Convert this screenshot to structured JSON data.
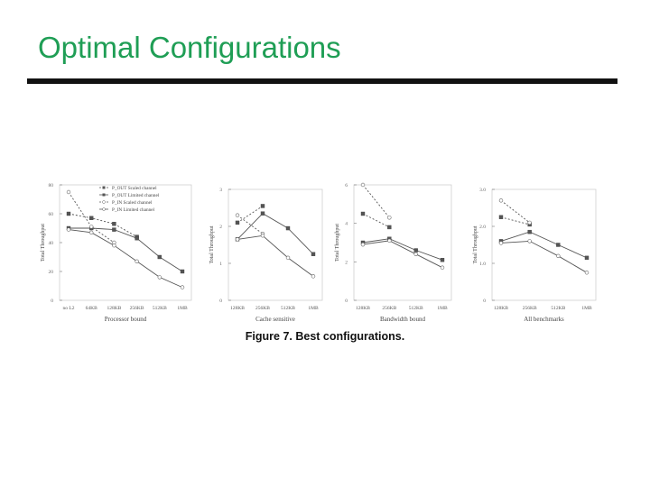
{
  "slide": {
    "title": "Optimal Configurations",
    "caption": "Figure 7. Best configurations."
  },
  "chart_data": [
    {
      "type": "line",
      "xlabel": "Processor bound",
      "ylabel": "Total Throughput",
      "categories": [
        "no L2",
        "64KB",
        "128KB",
        "256KB",
        "512KB",
        "1MB"
      ],
      "ylim": [
        0,
        80
      ],
      "yticks": [
        0,
        20,
        40,
        60,
        80
      ],
      "legend": [
        "P_OUT Scaled channel",
        "P_OUT Limited channel",
        "P_IN Scaled channel",
        "P_IN Limited channel"
      ],
      "series": [
        {
          "name": "P_OUT Scaled channel",
          "values": [
            60,
            57,
            53,
            44,
            null,
            null
          ]
        },
        {
          "name": "P_OUT Limited channel",
          "values": [
            50,
            50,
            49,
            43,
            30,
            20
          ]
        },
        {
          "name": "P_IN Scaled channel",
          "values": [
            75,
            51,
            40,
            null,
            null,
            null
          ]
        },
        {
          "name": "P_IN Limited channel",
          "values": [
            49,
            47,
            38,
            27,
            16,
            9
          ]
        }
      ]
    },
    {
      "type": "line",
      "xlabel": "Cache sensitive",
      "ylabel": "Total Throughput",
      "categories": [
        "128KB",
        "256KB",
        "512KB",
        "1MB"
      ],
      "ylim": [
        0,
        3
      ],
      "yticks": [
        0,
        1,
        2,
        3
      ],
      "series": [
        {
          "name": "P_OUT Scaled channel",
          "values": [
            2.1,
            2.55,
            null,
            null
          ]
        },
        {
          "name": "P_OUT Limited channel",
          "values": [
            1.65,
            2.35,
            1.95,
            1.25
          ]
        },
        {
          "name": "P_IN Scaled channel",
          "values": [
            2.3,
            1.8,
            null,
            null
          ]
        },
        {
          "name": "P_IN Limited channel",
          "values": [
            1.65,
            1.75,
            1.15,
            0.65
          ]
        }
      ]
    },
    {
      "type": "line",
      "xlabel": "Bandwidth bound",
      "ylabel": "Total Throughput",
      "categories": [
        "128KB",
        "256KB",
        "512KB",
        "1MB"
      ],
      "ylim": [
        0,
        6
      ],
      "yticks": [
        0,
        2,
        4,
        6
      ],
      "series": [
        {
          "name": "P_OUT Scaled channel",
          "values": [
            4.5,
            3.8,
            null,
            null
          ]
        },
        {
          "name": "P_OUT Limited channel",
          "values": [
            3.0,
            3.2,
            2.6,
            2.1
          ]
        },
        {
          "name": "P_IN Scaled channel",
          "values": [
            6.0,
            4.3,
            null,
            null
          ]
        },
        {
          "name": "P_IN Limited channel",
          "values": [
            2.9,
            3.1,
            2.4,
            1.7
          ]
        }
      ]
    },
    {
      "type": "line",
      "xlabel": "All benchmarks",
      "ylabel": "Total Throughput",
      "categories": [
        "128KB",
        "256KB",
        "512KB",
        "1MB"
      ],
      "ylim": [
        0,
        3
      ],
      "yticks": [
        0,
        1,
        2,
        3
      ],
      "ytick_labels": [
        "0",
        "1.0",
        "2.0",
        "3.0"
      ],
      "series": [
        {
          "name": "P_OUT Scaled channel",
          "values": [
            2.25,
            2.05,
            null,
            null
          ]
        },
        {
          "name": "P_OUT Limited channel",
          "values": [
            1.6,
            1.85,
            1.5,
            1.15
          ]
        },
        {
          "name": "P_IN Scaled channel",
          "values": [
            2.7,
            2.1,
            null,
            null
          ]
        },
        {
          "name": "P_IN Limited channel",
          "values": [
            1.55,
            1.6,
            1.2,
            0.75
          ]
        }
      ]
    }
  ]
}
